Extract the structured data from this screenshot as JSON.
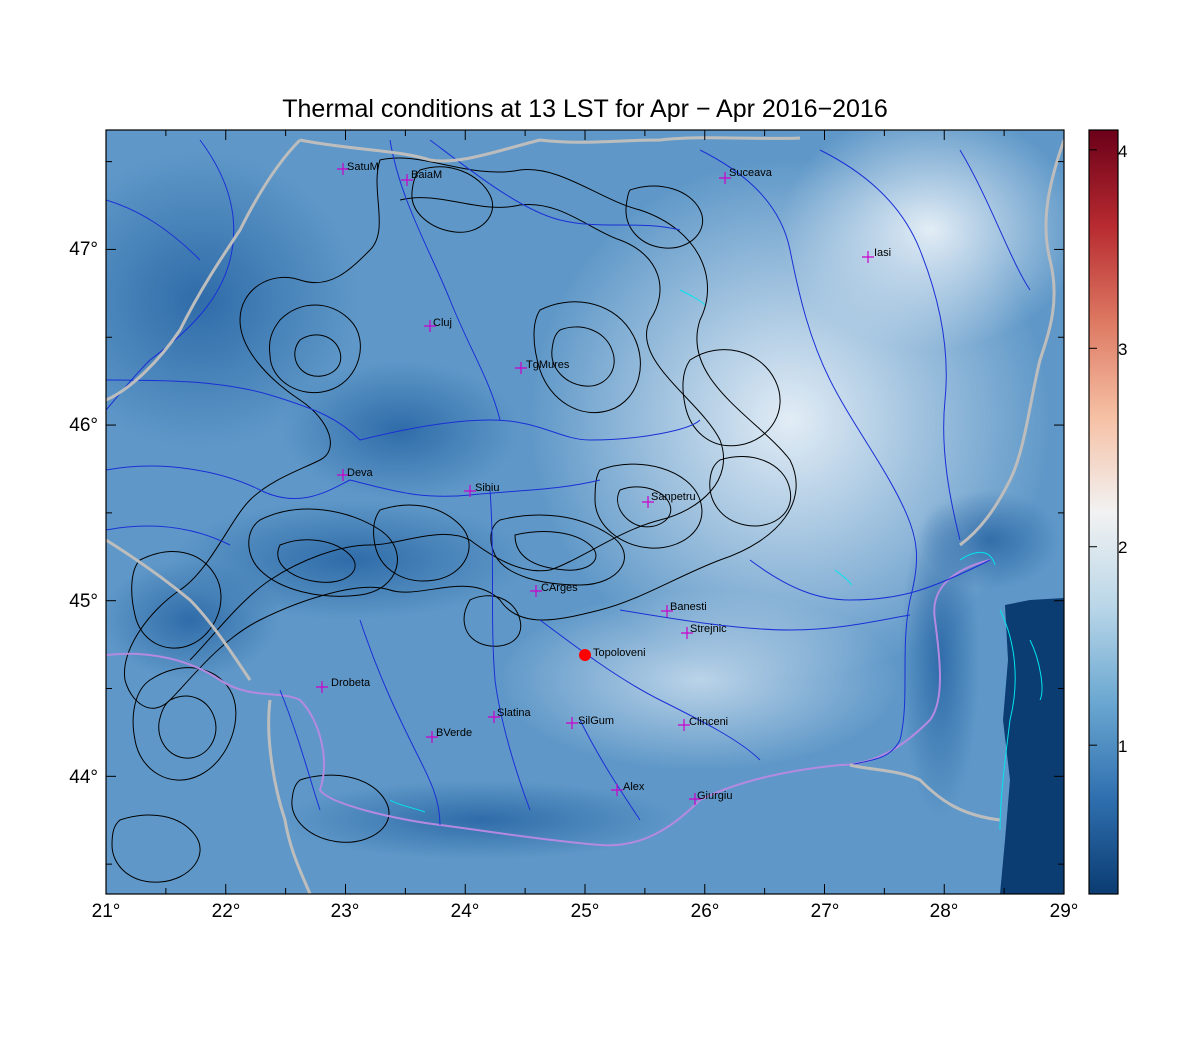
{
  "title": "Thermal conditions at 13 LST for Apr − Apr  2016−2016",
  "map": {
    "lon_range": [
      21,
      29
    ],
    "lat_range": [
      43.33,
      47.68
    ],
    "lon_ticks": [
      21,
      22,
      23,
      24,
      25,
      26,
      27,
      28,
      29
    ],
    "lon_tick_labels": [
      "21°",
      "22°",
      "23°",
      "24°",
      "25°",
      "26°",
      "27°",
      "28°",
      "29°"
    ],
    "lat_ticks": [
      44,
      45,
      46,
      47
    ],
    "lat_tick_labels": [
      "44°",
      "45°",
      "46°",
      "47°"
    ],
    "colors": {
      "field_low": "#0b3c72",
      "field_mid": "#3f84bd",
      "field_high": "#dde9f3",
      "rivers": "#1a2fd6",
      "borders": "#bdbdbd",
      "danube": "#c8a8e6",
      "contours": "#000000",
      "lakes": "#00e5ee",
      "stations": "#cc00cc",
      "highlight": "#ff0000"
    },
    "stations": [
      {
        "name": "SatuM",
        "lon": 23.0,
        "lat": 47.44
      },
      {
        "name": "BaiaM",
        "lon": 23.53,
        "lat": 47.38
      },
      {
        "name": "Suceava",
        "lon": 26.19,
        "lat": 47.39
      },
      {
        "name": "Iasi",
        "lon": 27.38,
        "lat": 46.94
      },
      {
        "name": "Cluj",
        "lon": 23.73,
        "lat": 46.55
      },
      {
        "name": "TgMures",
        "lon": 24.45,
        "lat": 46.31
      },
      {
        "name": "Deva",
        "lon": 22.98,
        "lat": 45.71
      },
      {
        "name": "Sibiu",
        "lon": 24.08,
        "lat": 45.6
      },
      {
        "name": "Sanpetru",
        "lon": 25.53,
        "lat": 45.55
      },
      {
        "name": "CArges",
        "lon": 24.6,
        "lat": 45.04
      },
      {
        "name": "Banesti",
        "lon": 25.68,
        "lat": 44.93
      },
      {
        "name": "Strejnic",
        "lon": 25.85,
        "lat": 44.8
      },
      {
        "name": "Drobeta",
        "lon": 22.8,
        "lat": 44.5
      },
      {
        "name": "Slatina",
        "lon": 24.25,
        "lat": 44.33
      },
      {
        "name": "SilGum",
        "lon": 24.9,
        "lat": 44.29
      },
      {
        "name": "Clinceni",
        "lon": 25.82,
        "lat": 44.28
      },
      {
        "name": "BVerde",
        "lon": 23.72,
        "lat": 44.22
      },
      {
        "name": "Alex",
        "lon": 25.27,
        "lat": 43.91
      },
      {
        "name": "Giurgiu",
        "lon": 25.93,
        "lat": 43.86
      }
    ],
    "highlight_station": {
      "name": "Topoloveni",
      "lon": 25.0,
      "lat": 44.68
    }
  },
  "colorbar": {
    "range": [
      0.25,
      4.1
    ],
    "ticks": [
      1,
      2,
      3,
      4
    ],
    "tick_labels": [
      "1",
      "2",
      "3",
      "4"
    ],
    "stops": [
      "#0b3c72",
      "#2f6faf",
      "#6aa7d1",
      "#b9d6e8",
      "#f2f2f2",
      "#f6c0a4",
      "#dd7862",
      "#b72a30",
      "#6b0019"
    ]
  }
}
